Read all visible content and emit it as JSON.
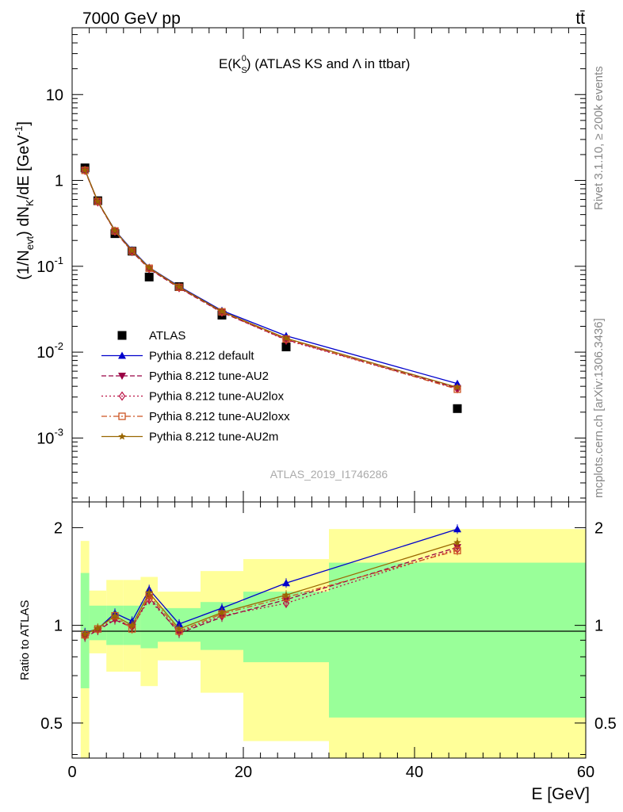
{
  "header": {
    "left": "7000 GeV pp",
    "right": "tt̄"
  },
  "side_text": {
    "top": "Rivet 3.1.10, ≥ 200k events",
    "bottom": "mcplots.cern.ch [arXiv:1306.3436]"
  },
  "plot_title": {
    "main": "E(K",
    "sub": "S",
    "sup": "0",
    "rest": ") (ATLAS KS and Λ in ttbar)"
  },
  "watermark": "ATLAS_2019_I1746286",
  "axes": {
    "ylabel_top": "(1/N_evt) dN_K/dE [GeV^-1]",
    "ylabel_top_parts": [
      "(1/N",
      "evt",
      ") dN",
      "K",
      "/dE [GeV",
      "-1",
      "]"
    ],
    "ylabel_bottom": "Ratio to ATLAS",
    "xlabel": "E [GeV]",
    "x_ticks": [
      "0",
      "20",
      "40",
      "60"
    ],
    "y_top_ticks": [
      {
        "base": "10",
        "exp": "-3",
        "value": 0.001
      },
      {
        "base": "10",
        "exp": "-2",
        "value": 0.01
      },
      {
        "base": "10",
        "exp": "-1",
        "value": 0.1
      },
      {
        "base": "1",
        "exp": "",
        "value": 1
      },
      {
        "base": "10",
        "exp": "",
        "value": 10
      }
    ],
    "y_bottom_ticks": [
      "0.5",
      "1",
      "2"
    ]
  },
  "chart_data": {
    "type": "line",
    "xlim": [
      0,
      60
    ],
    "ylim_top": [
      0.00018,
      60
    ],
    "ylog_top": true,
    "ylim_bottom": [
      0.39,
      2.4
    ],
    "ylog_bottom": true,
    "bins": [
      [
        1,
        2
      ],
      [
        2,
        4
      ],
      [
        4,
        6
      ],
      [
        6,
        8
      ],
      [
        8,
        10
      ],
      [
        10,
        15
      ],
      [
        15,
        20
      ],
      [
        20,
        30
      ],
      [
        30,
        60
      ]
    ],
    "x": [
      1.5,
      3,
      5,
      7,
      9,
      12.5,
      17.5,
      25,
      45
    ],
    "legend_position": "lower-left",
    "ratio_band_inner": [
      [
        0.64,
        1.45
      ],
      [
        0.9,
        1.15
      ],
      [
        0.87,
        1.15
      ],
      [
        0.87,
        1.15
      ],
      [
        0.85,
        1.18
      ],
      [
        0.89,
        1.13
      ],
      [
        0.84,
        1.18
      ],
      [
        0.77,
        1.27
      ],
      [
        0.52,
        1.56
      ]
    ],
    "ratio_band_outer": [
      [
        0.36,
        1.82
      ],
      [
        0.82,
        1.28
      ],
      [
        0.72,
        1.38
      ],
      [
        0.72,
        1.38
      ],
      [
        0.65,
        1.41
      ],
      [
        0.78,
        1.27
      ],
      [
        0.62,
        1.47
      ],
      [
        0.44,
        1.6
      ],
      [
        0.38,
        1.98
      ]
    ],
    "series": [
      {
        "name": "ATLAS",
        "style": "data",
        "marker": "square",
        "color": "#000000",
        "values": [
          1.4,
          0.58,
          0.24,
          0.15,
          0.075,
          0.058,
          0.027,
          0.0115,
          0.0022
        ]
      },
      {
        "name": "Pythia 8.212 default",
        "style": "solid",
        "marker": "triangle-up",
        "color": "#0000cc",
        "values": [
          1.33,
          0.565,
          0.262,
          0.155,
          0.097,
          0.0585,
          0.0305,
          0.0155,
          0.0043
        ],
        "ratio": [
          0.95,
          0.975,
          1.09,
          1.03,
          1.29,
          1.01,
          1.13,
          1.35,
          1.98
        ]
      },
      {
        "name": "Pythia 8.212 tune-AU2",
        "style": "dashed",
        "marker": "triangle-down",
        "color": "#990044",
        "values": [
          1.3,
          0.56,
          0.255,
          0.148,
          0.093,
          0.056,
          0.029,
          0.014,
          0.0038
        ],
        "ratio": [
          0.92,
          0.965,
          1.04,
          0.985,
          1.22,
          0.945,
          1.06,
          1.2,
          1.74
        ]
      },
      {
        "name": "Pythia 8.212 tune-AU2lox",
        "style": "dotted",
        "marker": "diamond-open",
        "color": "#bb1144",
        "values": [
          1.31,
          0.563,
          0.256,
          0.149,
          0.094,
          0.0565,
          0.0292,
          0.0138,
          0.00375
        ],
        "ratio": [
          0.93,
          0.97,
          1.05,
          0.99,
          1.2,
          0.955,
          1.07,
          1.17,
          1.72
        ]
      },
      {
        "name": "Pythia 8.212 tune-AU2loxx",
        "style": "dashdot",
        "marker": "square-open",
        "color": "#cc5522",
        "values": [
          1.31,
          0.57,
          0.258,
          0.15,
          0.095,
          0.057,
          0.0295,
          0.0142,
          0.0037
        ],
        "ratio": [
          0.935,
          0.975,
          1.07,
          0.975,
          1.24,
          0.96,
          1.085,
          1.22,
          1.7
        ]
      },
      {
        "name": "Pythia 8.212 tune-AU2m",
        "style": "solid",
        "marker": "star",
        "color": "#996600",
        "values": [
          1.32,
          0.57,
          0.26,
          0.152,
          0.096,
          0.0575,
          0.0298,
          0.0145,
          0.0039
        ],
        "ratio": [
          0.94,
          0.98,
          1.07,
          1.0,
          1.26,
          0.975,
          1.095,
          1.24,
          1.8
        ]
      }
    ]
  }
}
